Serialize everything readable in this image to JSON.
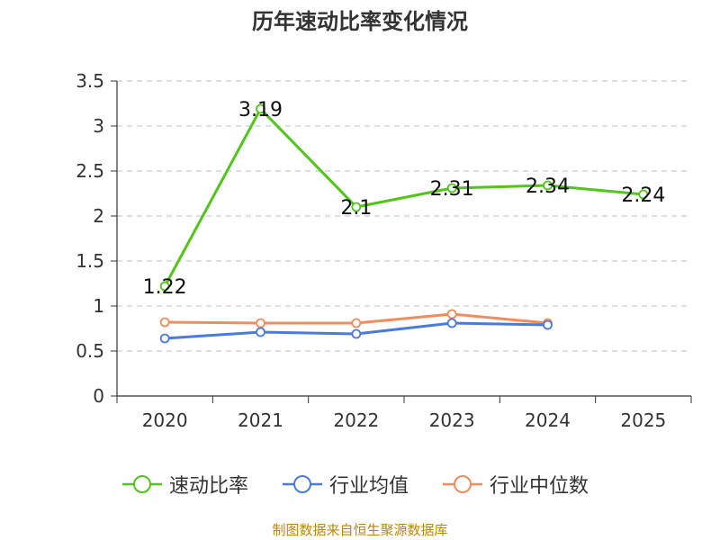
{
  "chart_data": {
    "type": "line",
    "title": "历年速动比率变化情况",
    "categories": [
      "2020",
      "2021",
      "2022",
      "2023",
      "2024",
      "2025"
    ],
    "y_ticks": [
      "0",
      "0.5",
      "1",
      "1.5",
      "2",
      "2.5",
      "3",
      "3.5"
    ],
    "ylim": [
      0,
      3.5
    ],
    "grid": true,
    "legend_position": "bottom",
    "series": [
      {
        "name": "速动比率",
        "color": "#52c41a",
        "values": [
          1.22,
          3.19,
          2.1,
          2.31,
          2.34,
          2.24
        ],
        "labels": [
          "1.22",
          "3.19",
          "2.1",
          "2.31",
          "2.34",
          "2.24"
        ]
      },
      {
        "name": "行业均值",
        "color": "#4a7bdc",
        "values": [
          0.64,
          0.71,
          0.69,
          0.81,
          0.79,
          null
        ]
      },
      {
        "name": "行业中位数",
        "color": "#f28c5a",
        "values": [
          0.82,
          0.81,
          0.81,
          0.91,
          0.81,
          null
        ]
      }
    ]
  },
  "source": "制图数据来自恒生聚源数据库"
}
